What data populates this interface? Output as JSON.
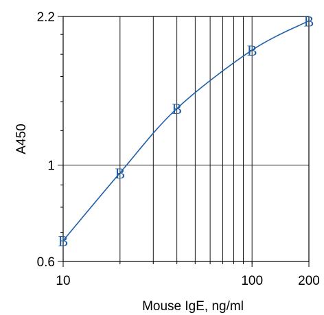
{
  "chart_data": {
    "type": "line",
    "xlabel": "Mouse IgE, ng/ml",
    "ylabel": "A450",
    "x_scale": "log",
    "y_scale": "log",
    "xlim": [
      10,
      200
    ],
    "ylim": [
      0.6,
      2.2
    ],
    "x_tick_labels": [
      {
        "value": 10,
        "label": "10"
      },
      {
        "value": 100,
        "label": "100"
      },
      {
        "value": 200,
        "label": "200"
      }
    ],
    "y_tick_labels": [
      {
        "value": 0.6,
        "label": "0.6"
      },
      {
        "value": 1,
        "label": "1"
      },
      {
        "value": 2.2,
        "label": "2.2"
      }
    ],
    "x_gridlines": [
      20,
      30,
      40,
      50,
      60,
      70,
      80,
      90,
      100
    ],
    "y_gridlines": [
      1
    ],
    "x_minor_ticks": [
      20,
      30,
      40,
      50,
      60,
      70,
      80,
      90,
      100
    ],
    "y_minor_ticks": [
      0.7,
      0.8,
      0.9,
      1.2,
      1.4,
      1.6,
      1.8,
      2.0
    ],
    "series": [
      {
        "marker": "B",
        "color": "#1f5fa8",
        "x": [
          10,
          20,
          40,
          100,
          200
        ],
        "y": [
          0.67,
          0.96,
          1.35,
          1.84,
          2.15
        ]
      }
    ]
  }
}
